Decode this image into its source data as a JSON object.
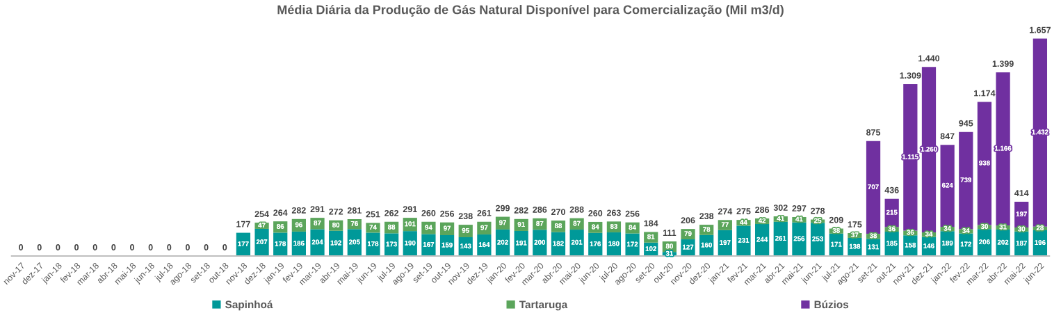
{
  "chart_data": {
    "type": "bar",
    "stacked": true,
    "title": "Média Diária da Produção de Gás Natural Disponível para Comercialização (Mil m3/d)",
    "categories": [
      "nov-17",
      "dez-17",
      "jan-18",
      "fev-18",
      "mar-18",
      "abr-18",
      "mai-18",
      "jun-18",
      "jul-18",
      "ago-18",
      "set-18",
      "out-18",
      "nov-18",
      "dez-18",
      "jan-19",
      "fev-19",
      "mar-19",
      "abr-19",
      "mai-19",
      "jun-19",
      "jul-19",
      "ago-19",
      "set-19",
      "out-19",
      "nov-19",
      "dez-19",
      "jan-20",
      "fev-20",
      "mar-20",
      "abr-20",
      "mai-20",
      "jun-20",
      "jul-20",
      "ago-20",
      "set-20",
      "out-20",
      "nov-20",
      "dez-20",
      "jan-21",
      "fev-21",
      "mar-21",
      "abr-21",
      "mai-21",
      "jun-21",
      "jul-21",
      "ago-21",
      "set-21",
      "out-21",
      "nov-21",
      "dez-21",
      "jan-22",
      "fev-22",
      "mar-22",
      "abr-22",
      "mai-22",
      "jun-22"
    ],
    "series": [
      {
        "name": "Sapinhoá",
        "color": "#009999",
        "values": [
          null,
          null,
          null,
          null,
          null,
          null,
          null,
          null,
          null,
          null,
          null,
          null,
          177,
          207,
          178,
          186,
          204,
          192,
          205,
          178,
          173,
          190,
          167,
          159,
          143,
          164,
          202,
          191,
          200,
          182,
          201,
          176,
          180,
          172,
          102,
          31,
          127,
          160,
          197,
          231,
          244,
          261,
          256,
          253,
          171,
          138,
          131,
          185,
          158,
          146,
          189,
          172,
          206,
          202,
          187,
          196
        ],
        "value_labels": [
          null,
          null,
          null,
          null,
          null,
          null,
          null,
          null,
          null,
          null,
          null,
          null,
          "177",
          "207",
          "178",
          "186",
          "204",
          "192",
          "205",
          "178",
          "173",
          "190",
          "167",
          "159",
          "143",
          "164",
          "202",
          "191",
          "200",
          "182",
          "201",
          "176",
          "180",
          "172",
          "102",
          "31",
          "127",
          "160",
          "197",
          "231",
          "244",
          "261",
          "256",
          "253",
          "171",
          "138",
          "131",
          "185",
          "158",
          "146",
          "189",
          "172",
          "206",
          "202",
          "187",
          "196"
        ]
      },
      {
        "name": "Tartaruga",
        "color": "#5ba55b",
        "values": [
          null,
          null,
          null,
          null,
          null,
          null,
          null,
          null,
          null,
          null,
          null,
          null,
          null,
          47,
          86,
          96,
          87,
          80,
          76,
          74,
          88,
          101,
          94,
          97,
          95,
          97,
          97,
          91,
          87,
          88,
          87,
          84,
          83,
          84,
          81,
          80,
          79,
          78,
          77,
          44,
          42,
          41,
          41,
          25,
          38,
          37,
          38,
          36,
          36,
          34,
          34,
          34,
          30,
          31,
          30,
          28
        ],
        "value_labels": [
          null,
          null,
          null,
          null,
          null,
          null,
          null,
          null,
          null,
          null,
          null,
          null,
          null,
          "47",
          "86",
          "96",
          "87",
          "80",
          "76",
          "74",
          "88",
          "101",
          "94",
          "97",
          "95",
          "97",
          "97",
          "91",
          "87",
          "88",
          "87",
          "84",
          "83",
          "84",
          "81",
          "80",
          "79",
          "78",
          "77",
          "44",
          "42",
          "41",
          "41",
          "25",
          "38",
          "37",
          "38",
          "36",
          "36",
          "34",
          "34",
          "34",
          "30",
          "31",
          "30",
          "28"
        ]
      },
      {
        "name": "Búzios",
        "color": "#7030a0",
        "values": [
          null,
          null,
          null,
          null,
          null,
          null,
          null,
          null,
          null,
          null,
          null,
          null,
          null,
          null,
          null,
          null,
          null,
          null,
          null,
          null,
          null,
          null,
          null,
          null,
          null,
          null,
          null,
          null,
          null,
          null,
          null,
          null,
          null,
          null,
          null,
          null,
          null,
          null,
          null,
          null,
          null,
          null,
          null,
          null,
          null,
          null,
          707,
          215,
          1115,
          1260,
          624,
          739,
          938,
          1166,
          197,
          1432
        ],
        "value_labels": [
          null,
          null,
          null,
          null,
          null,
          null,
          null,
          null,
          null,
          null,
          null,
          null,
          null,
          null,
          null,
          null,
          null,
          null,
          null,
          null,
          null,
          null,
          null,
          null,
          null,
          null,
          null,
          null,
          null,
          null,
          null,
          null,
          null,
          null,
          null,
          null,
          null,
          null,
          null,
          null,
          null,
          null,
          null,
          null,
          null,
          null,
          "707",
          "215",
          "1.115",
          "1.260",
          "624",
          "739",
          "938",
          "1.166",
          "197",
          "1.432"
        ]
      }
    ],
    "totals": [
      "0",
      "0",
      "0",
      "0",
      "0",
      "0",
      "0",
      "0",
      "0",
      "0",
      "0",
      "0",
      "177",
      "254",
      "264",
      "282",
      "291",
      "272",
      "281",
      "251",
      "262",
      "291",
      "260",
      "256",
      "238",
      "261",
      "299",
      "282",
      "286",
      "270",
      "288",
      "260",
      "263",
      "256",
      "184",
      "111",
      "206",
      "238",
      "274",
      "275",
      "286",
      "302",
      "297",
      "278",
      "209",
      "175",
      "875",
      "436",
      "1.309",
      "1.440",
      "847",
      "945",
      "1.174",
      "1.399",
      "414",
      "1.657"
    ],
    "tick_labels": "x",
    "legend": "bottom"
  }
}
